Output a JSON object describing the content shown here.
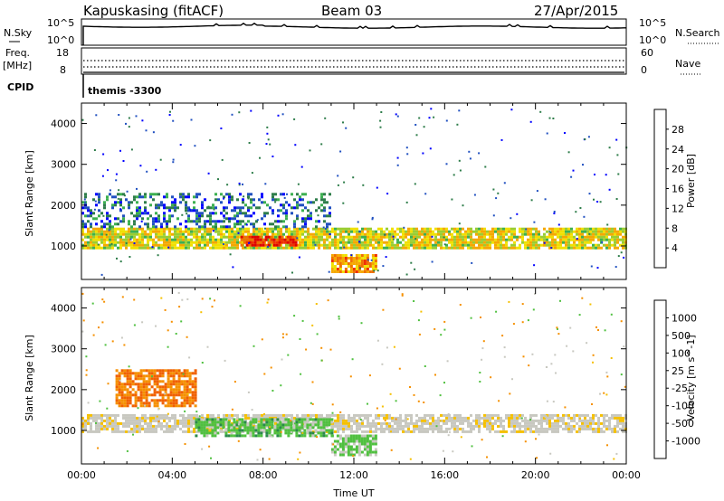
{
  "header": {
    "station": "Kapuskasing (fitACF)",
    "beam": "Beam 03",
    "date": "27/Apr/2015"
  },
  "status_panels": {
    "nsky": {
      "label": "N.Sky",
      "ticks": [
        "10^5",
        "10^0"
      ]
    },
    "nsearch": {
      "label": "N.Search",
      "ticks": [
        "10^5",
        "10^0"
      ]
    },
    "freq": {
      "label_top": "Freq.",
      "label_bottom": "[MHz]",
      "ticks": [
        "18",
        "8"
      ]
    },
    "nave": {
      "label": "Nave",
      "ticks": [
        "60",
        "0"
      ]
    },
    "cpid": {
      "label": "CPID",
      "value": "themis -3300"
    }
  },
  "chart_data": [
    {
      "type": "heatmap",
      "title": "",
      "xlabel": "",
      "ylabel": "Slant Range [km]",
      "xlim": [
        "00:00",
        "24:00"
      ],
      "ylim": [
        180,
        4500
      ],
      "yticks": [
        "1000",
        "2000",
        "3000",
        "4000"
      ],
      "colorbar": {
        "label": "Power [dB]",
        "ticks": [
          "4",
          "8",
          "12",
          "16",
          "20",
          "24",
          "28"
        ],
        "colors": [
          "#0000ff",
          "#2050c0",
          "#2e7d4a",
          "#3cb050",
          "#9acd32",
          "#f0e000",
          "#f5a800",
          "#f07000",
          "#f03000",
          "#e00000"
        ]
      },
      "regions": [
        {
          "name": "main band",
          "t": [
            0,
            24
          ],
          "range_km": [
            950,
            1450
          ],
          "level_db": 18
        },
        {
          "name": "strong echo 07-09 UT",
          "t": [
            7,
            9.5
          ],
          "range_km": [
            1000,
            1250
          ],
          "level_db": 28
        },
        {
          "name": "weak scatter 00-11 UT",
          "t": [
            0,
            11
          ],
          "range_km": [
            1500,
            2300
          ],
          "level_db": 8
        },
        {
          "name": "descending echo 11-13 UT",
          "t": [
            11,
            13
          ],
          "range_km": [
            400,
            800
          ],
          "level_db": 22
        }
      ]
    },
    {
      "type": "heatmap",
      "title": "",
      "xlabel": "Time UT",
      "ylabel": "Slant Range [km]",
      "xlim": [
        "00:00",
        "24:00"
      ],
      "ylim": [
        180,
        4500
      ],
      "xticks": [
        "00:00",
        "04:00",
        "08:00",
        "12:00",
        "16:00",
        "20:00",
        "00:00"
      ],
      "yticks": [
        "1000",
        "2000",
        "3000",
        "4000"
      ],
      "colorbar": {
        "label": "Velocity [m s^-1]",
        "ticks": [
          "1000",
          "500",
          "100",
          "25",
          "-25",
          "-100",
          "-500",
          "-1000"
        ],
        "colors": [
          "#1030c0",
          "#2060d0",
          "#2a8a4a",
          "#50c040",
          "#c8c8c0",
          "#c8c8c0",
          "#f5c000",
          "#f59000",
          "#f06000",
          "#e00000"
        ]
      },
      "regions": [
        {
          "name": "ground scatter band",
          "t": [
            0,
            24
          ],
          "range_km": [
            1000,
            1400
          ],
          "velocity": 0
        },
        {
          "name": "positive velocity 05-11 UT",
          "t": [
            5,
            11
          ],
          "range_km": [
            900,
            1300
          ],
          "velocity": 200
        },
        {
          "name": "negative velocity 02-05 UT",
          "t": [
            1.5,
            5
          ],
          "range_km": [
            1600,
            2500
          ],
          "velocity": -300
        },
        {
          "name": "descending echo 11-13 UT",
          "t": [
            11,
            13
          ],
          "range_km": [
            400,
            900
          ],
          "velocity": 150
        }
      ]
    }
  ]
}
